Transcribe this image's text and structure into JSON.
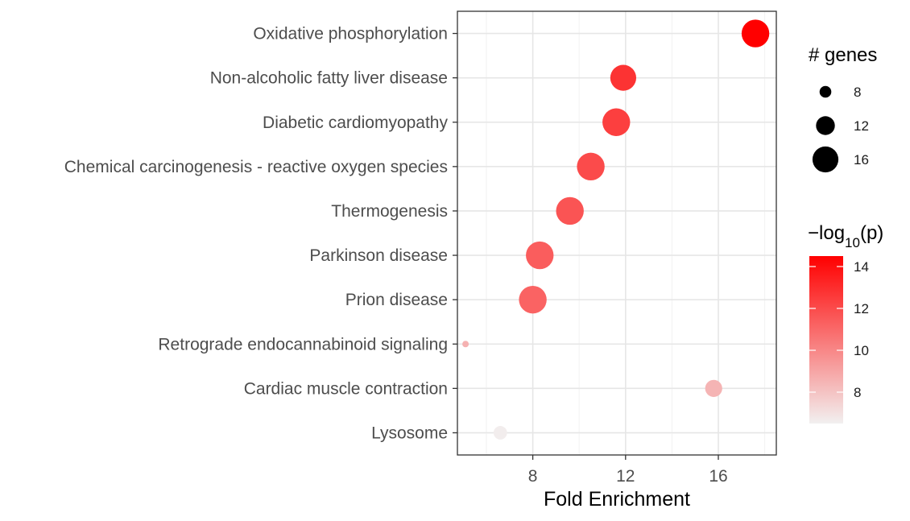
{
  "chart_data": {
    "type": "scatter",
    "xlabel": "Fold Enrichment",
    "ylabel": "",
    "xlim": [
      4.75,
      18.5
    ],
    "x_ticks": [
      8,
      12,
      16
    ],
    "grid": true,
    "legend_position": "right",
    "categories": [
      "Oxidative phosphorylation",
      "Non-alcoholic fatty liver disease",
      "Diabetic cardiomyopathy",
      "Chemical carcinogenesis - reactive oxygen species",
      "Thermogenesis",
      "Parkinson disease",
      "Prion disease",
      "Retrograde endocannabinoid signaling",
      "Cardiac muscle contraction",
      "Lysosome"
    ],
    "points": [
      {
        "term": "Oxidative phosphorylation",
        "fold_enrichment": 17.6,
        "genes": 17,
        "neg_log10_p": 14.5
      },
      {
        "term": "Non-alcoholic fatty liver disease",
        "fold_enrichment": 11.9,
        "genes": 16,
        "neg_log10_p": 12.8
      },
      {
        "term": "Diabetic cardiomyopathy",
        "fold_enrichment": 11.6,
        "genes": 17,
        "neg_log10_p": 12.4
      },
      {
        "term": "Chemical carcinogenesis - reactive oxygen species",
        "fold_enrichment": 10.5,
        "genes": 17,
        "neg_log10_p": 12.0
      },
      {
        "term": "Thermogenesis",
        "fold_enrichment": 9.6,
        "genes": 17,
        "neg_log10_p": 11.7
      },
      {
        "term": "Parkinson disease",
        "fold_enrichment": 8.3,
        "genes": 17,
        "neg_log10_p": 11.4
      },
      {
        "term": "Prion disease",
        "fold_enrichment": 8.0,
        "genes": 17,
        "neg_log10_p": 11.2
      },
      {
        "term": "Retrograde endocannabinoid signaling",
        "fold_enrichment": 5.1,
        "genes": 5,
        "neg_log10_p": 8.6
      },
      {
        "term": "Cardiac muscle contraction",
        "fold_enrichment": 15.8,
        "genes": 11,
        "neg_log10_p": 8.5
      },
      {
        "term": "Lysosome",
        "fold_enrichment": 6.6,
        "genes": 9,
        "neg_log10_p": 6.6
      }
    ],
    "size_legend": {
      "title": "# genes",
      "values": [
        8,
        12,
        16
      ],
      "labels": [
        "8",
        "12",
        "16"
      ]
    },
    "color_legend": {
      "title_prefix": "−log",
      "title_sub": "10",
      "title_suffix": "(p)",
      "range": [
        6.5,
        14.5
      ],
      "ticks": [
        8,
        10,
        12,
        14
      ],
      "labels": [
        "8",
        "10",
        "12",
        "14"
      ],
      "low_color": "#f2f0f0",
      "high_color": "#ff0000"
    }
  }
}
